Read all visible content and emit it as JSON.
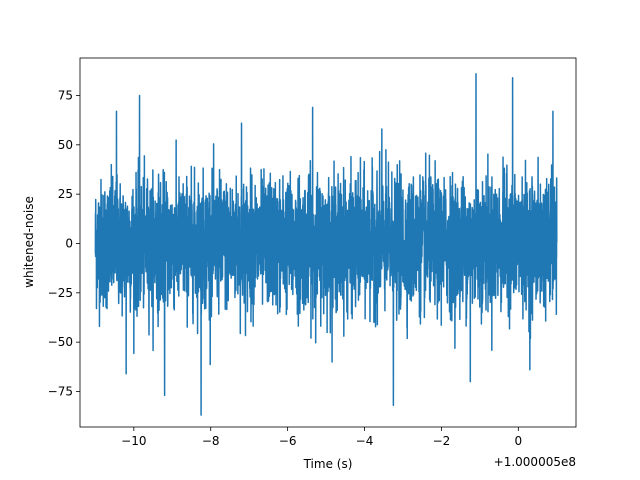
{
  "chart_data": {
    "type": "line",
    "title": "",
    "xlabel": "Time (s)",
    "ylabel": "whitened-noise",
    "x_offset_label": "+1.000005e8",
    "xlim": [
      -11.4,
      1.5
    ],
    "ylim": [
      -93,
      94
    ],
    "x_range": [
      -11.0,
      1.0
    ],
    "x_ticks": [
      -10,
      -8,
      -6,
      -4,
      -2,
      0
    ],
    "x_tick_labels": [
      "−10",
      "−8",
      "−6",
      "−4",
      "−2",
      "0"
    ],
    "y_ticks": [
      -75,
      -50,
      -25,
      0,
      25,
      50,
      75
    ],
    "y_tick_labels": [
      "−75",
      "−50",
      "−25",
      "0",
      "25",
      "50",
      "75"
    ],
    "grid": false,
    "series": [
      {
        "color": "#1f77b4",
        "noise_std": 16,
        "peaks": [
          {
            "x": -10.45,
            "y": 67
          },
          {
            "x": -9.85,
            "y": 75
          },
          {
            "x": -7.2,
            "y": 61
          },
          {
            "x": -5.35,
            "y": 69
          },
          {
            "x": -3.55,
            "y": 58
          },
          {
            "x": -1.1,
            "y": 86
          },
          {
            "x": -0.15,
            "y": 84
          },
          {
            "x": 0.9,
            "y": 67
          }
        ],
        "troughs": [
          {
            "x": -10.2,
            "y": -66
          },
          {
            "x": -9.2,
            "y": -77
          },
          {
            "x": -8.25,
            "y": -87
          },
          {
            "x": -3.25,
            "y": -82
          },
          {
            "x": -1.25,
            "y": -70
          },
          {
            "x": 0.3,
            "y": -64
          }
        ]
      }
    ]
  }
}
